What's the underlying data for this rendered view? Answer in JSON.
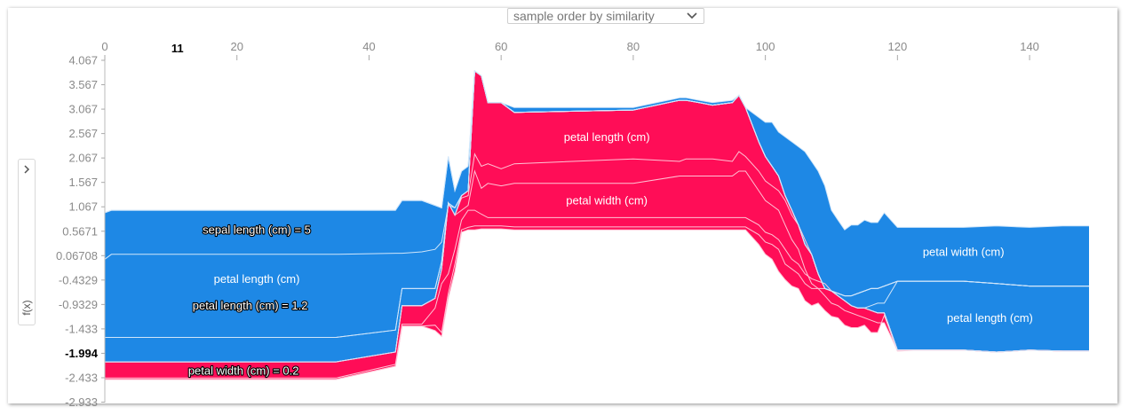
{
  "controls": {
    "order_select_label": "sample order by similarity",
    "side_toggle_icon": "chevron-right-icon",
    "y_axis_label": "f(x)"
  },
  "chart_data": {
    "type": "area",
    "title": "",
    "xlabel": "",
    "ylabel": "f(x)",
    "xlim": [
      0,
      149
    ],
    "ylim": [
      -2.933,
      4.067
    ],
    "x_ticks": [
      "0",
      "20",
      "40",
      "60",
      "80",
      "100",
      "120",
      "140"
    ],
    "x_highlight": {
      "x": 11,
      "label": "11"
    },
    "y_ticks": [
      "4.067",
      "3.567",
      "3.067",
      "2.567",
      "2.067",
      "1.567",
      "1.067",
      "0.5671",
      "0.06708",
      "-0.4329",
      "-0.9329",
      "-1.433",
      "-1.994",
      "-2.433",
      "-2.933"
    ],
    "y_highlight": "-1.994",
    "base_value_label": "-1.994",
    "colors": {
      "positive": "#ff0d57",
      "negative": "#1e88e5",
      "divider_pos": "#ffc3d5",
      "divider_neg": "#d1e6fa"
    },
    "x": [
      0,
      1,
      10,
      35,
      44,
      45,
      48,
      50,
      51,
      52,
      53,
      54,
      55,
      56,
      57,
      58,
      60,
      62,
      80,
      87,
      88,
      90,
      92,
      95,
      96,
      97,
      99,
      100,
      101,
      102,
      103,
      104,
      105,
      106,
      107,
      108,
      109,
      110,
      111,
      112,
      113,
      114,
      115,
      116,
      117,
      118,
      120,
      123,
      130,
      135,
      140,
      145,
      149
    ],
    "series": [
      {
        "name": "",
        "kind": "positive",
        "values": [
          -2.46,
          -2.46,
          -2.46,
          -2.46,
          -2.19,
          -1.37,
          -1.37,
          -1.46,
          -1.58,
          -0.8,
          -0.25,
          0.55,
          0.6,
          0.6,
          0.62,
          0.62,
          0.62,
          0.6,
          0.6,
          0.6,
          0.6,
          0.6,
          0.6,
          0.6,
          0.6,
          0.6,
          0.3,
          0.1,
          0.0,
          -0.25,
          -0.42,
          -0.55,
          -0.6,
          -0.85,
          -0.95,
          -0.9,
          -1.05,
          -1.17,
          -1.2,
          -1.35,
          -1.4,
          -1.4,
          -1.35,
          -1.5,
          -1.5,
          -1.15,
          -1.88,
          -1.86,
          -1.86,
          -1.9,
          -1.86,
          -1.88,
          -1.88
        ]
      },
      {
        "name": "",
        "kind": "positive",
        "values": [
          -2.46,
          -2.46,
          -2.46,
          -2.46,
          -2.19,
          -1.37,
          -1.37,
          -1.35,
          -1.5,
          -0.7,
          -0.1,
          0.6,
          0.65,
          0.68,
          0.68,
          0.68,
          0.68,
          0.66,
          0.66,
          0.66,
          0.66,
          0.66,
          0.66,
          0.66,
          0.66,
          0.66,
          0.5,
          0.35,
          0.3,
          0.2,
          -0.1,
          -0.2,
          -0.3,
          -0.5,
          -0.6,
          -0.6,
          -0.75,
          -0.9,
          -0.95,
          -1.05,
          -1.1,
          -1.15,
          -1.2,
          -1.25,
          -1.3,
          -1.3,
          -1.86,
          -1.86,
          -1.86,
          -1.9,
          -1.86,
          -1.88,
          -1.88
        ]
      },
      {
        "name": "",
        "kind": "positive",
        "values": [
          -2.43,
          -2.43,
          -2.43,
          -2.43,
          -2.15,
          -1.33,
          -1.33,
          -1.0,
          -0.5,
          -0.3,
          0.2,
          0.8,
          1.0,
          1.0,
          0.92,
          0.85,
          0.85,
          0.85,
          0.85,
          0.85,
          0.85,
          0.85,
          0.85,
          0.85,
          0.85,
          0.85,
          0.7,
          0.55,
          0.5,
          0.4,
          0.2,
          0.0,
          -0.1,
          -0.3,
          -0.4,
          -0.45,
          -0.5,
          -0.65,
          -0.75,
          -0.85,
          -0.95,
          -1.0,
          -1.0,
          -1.05,
          -1.1,
          -1.1,
          -1.86,
          -1.86,
          -1.86,
          -1.9,
          -1.86,
          -1.88,
          -1.88
        ]
      },
      {
        "name": "",
        "kind": "positive",
        "values": [
          -2.1,
          -2.1,
          -2.1,
          -2.1,
          -1.9,
          -0.95,
          -0.95,
          -0.8,
          -0.2,
          1.15,
          0.9,
          1.0,
          1.1,
          1.8,
          1.45,
          1.55,
          1.5,
          1.55,
          1.55,
          1.7,
          1.7,
          1.7,
          1.7,
          1.7,
          1.8,
          1.8,
          1.4,
          1.2,
          1.1,
          1.0,
          0.7,
          0.4,
          0.2,
          -0.2,
          -0.5,
          -0.6,
          -0.6,
          -0.65,
          -0.75,
          -0.85,
          -0.95,
          -1.0,
          -1.0,
          -1.05,
          -1.1,
          -1.1,
          -1.86,
          -1.86,
          -1.86,
          -1.9,
          -1.86,
          -1.88,
          -1.88
        ]
      },
      {
        "name": "",
        "kind": "positive",
        "values": [
          -2.1,
          -2.1,
          -2.1,
          -2.1,
          -1.9,
          -0.95,
          -0.95,
          -0.8,
          -0.2,
          1.15,
          0.9,
          1.25,
          1.3,
          2.15,
          1.9,
          1.95,
          1.85,
          1.95,
          2.05,
          2.0,
          2.05,
          2.05,
          2.05,
          2.0,
          2.2,
          2.1,
          1.8,
          1.6,
          1.5,
          1.4,
          1.2,
          0.9,
          0.7,
          0.4,
          0.1,
          -0.3,
          -0.6,
          -0.65,
          -0.75,
          -0.85,
          -0.95,
          -1.0,
          -1.0,
          -1.05,
          -1.1,
          -1.1,
          -1.86,
          -1.86,
          -1.86,
          -1.9,
          -1.86,
          -1.88,
          -1.88
        ]
      },
      {
        "name": "",
        "kind": "positive",
        "values": [
          -2.1,
          -2.1,
          -2.1,
          -2.1,
          -1.9,
          -0.95,
          -0.95,
          -0.8,
          -0.2,
          1.15,
          0.9,
          1.3,
          1.4,
          3.85,
          3.75,
          3.2,
          3.2,
          3.0,
          3.05,
          3.25,
          3.25,
          3.2,
          3.15,
          3.2,
          3.35,
          3.1,
          2.4,
          2.1,
          1.9,
          1.7,
          1.3,
          1.0,
          0.7,
          0.3,
          0.1,
          -0.3,
          -0.6,
          -0.65,
          -0.75,
          -0.85,
          -0.95,
          -1.0,
          -1.0,
          -1.05,
          -1.1,
          -1.1,
          -1.86,
          -1.86,
          -1.86,
          -1.9,
          -1.86,
          -1.88,
          -1.88
        ]
      },
      {
        "name": "",
        "kind": "negative",
        "values": [
          -2.1,
          -2.1,
          -2.1,
          -2.1,
          -1.9,
          -0.95,
          -0.95,
          -0.8,
          -0.2,
          1.15,
          0.9,
          1.3,
          1.4,
          3.85,
          3.75,
          3.2,
          3.2,
          3.0,
          3.05,
          3.25,
          3.25,
          3.2,
          3.15,
          3.2,
          3.35,
          3.1,
          2.4,
          2.1,
          1.9,
          1.7,
          1.3,
          1.0,
          0.7,
          0.3,
          0.1,
          -0.3,
          -0.6,
          -0.65,
          -0.75,
          -0.85,
          -0.95,
          -1.0,
          -1.0,
          -1.05,
          -1.1,
          -1.1,
          -1.86,
          -1.86,
          -1.86,
          -1.9,
          -1.86,
          -1.88,
          -1.88
        ]
      },
      {
        "name": "",
        "kind": "negative",
        "values": [
          -1.6,
          -1.6,
          -1.6,
          -1.6,
          -1.45,
          -0.6,
          -0.6,
          -0.6,
          -0.05,
          1.15,
          1.05,
          1.3,
          1.4,
          3.85,
          3.75,
          3.2,
          3.2,
          3.0,
          3.05,
          3.25,
          3.25,
          3.2,
          3.15,
          3.2,
          3.35,
          3.1,
          2.4,
          2.1,
          1.9,
          1.7,
          1.3,
          1.0,
          0.7,
          0.3,
          0.1,
          -0.3,
          -0.6,
          -0.65,
          -0.75,
          -0.85,
          -0.95,
          -1.0,
          -1.0,
          -0.95,
          -0.9,
          -0.9,
          -0.45,
          -0.45,
          -0.45,
          -0.5,
          -0.55,
          -0.55,
          -0.55
        ]
      },
      {
        "name": "",
        "kind": "negative",
        "values": [
          -1.6,
          -1.6,
          -1.6,
          -1.6,
          -1.45,
          -0.6,
          -0.6,
          -0.6,
          -0.05,
          1.15,
          1.05,
          1.3,
          1.4,
          3.85,
          3.75,
          3.2,
          3.2,
          3.0,
          3.05,
          3.25,
          3.25,
          3.2,
          3.15,
          3.2,
          3.35,
          3.1,
          2.4,
          2.1,
          1.9,
          1.7,
          1.3,
          1.0,
          0.7,
          0.3,
          0.1,
          -0.3,
          -0.6,
          -0.65,
          -0.7,
          -0.75,
          -0.75,
          -0.7,
          -0.65,
          -0.6,
          -0.6,
          -0.55,
          -0.45,
          -0.45,
          -0.45,
          -0.5,
          -0.55,
          -0.55,
          -0.55
        ]
      },
      {
        "name": "",
        "kind": "negative",
        "values": [
          0.0,
          0.1,
          0.1,
          0.1,
          0.12,
          0.12,
          0.15,
          0.2,
          0.35,
          1.1,
          1.05,
          1.3,
          1.4,
          3.85,
          3.75,
          3.2,
          3.2,
          3.0,
          3.05,
          3.25,
          3.25,
          3.2,
          3.15,
          3.2,
          3.35,
          3.1,
          2.4,
          2.1,
          1.9,
          1.7,
          1.3,
          1.0,
          0.7,
          0.3,
          0.1,
          -0.3,
          -0.6,
          -0.65,
          -0.7,
          -0.75,
          -0.75,
          -0.7,
          -0.65,
          -0.6,
          -0.6,
          -0.55,
          -0.45,
          -0.45,
          -0.45,
          -0.5,
          -0.55,
          -0.55,
          -0.55
        ]
      },
      {
        "name": "",
        "kind": "negative",
        "values": [
          0.95,
          1.0,
          1.0,
          1.0,
          1.0,
          1.2,
          1.2,
          1.1,
          1.05,
          2.1,
          1.4,
          1.8,
          1.9,
          3.85,
          3.75,
          3.2,
          3.2,
          3.0,
          3.05,
          3.25,
          3.25,
          3.2,
          3.15,
          3.2,
          3.35,
          3.1,
          2.4,
          2.1,
          1.9,
          1.7,
          1.3,
          1.0,
          0.7,
          0.3,
          0.1,
          -0.3,
          -0.6,
          -0.65,
          -0.7,
          -0.75,
          -0.75,
          -0.7,
          -0.65,
          -0.6,
          -0.6,
          -0.55,
          -0.45,
          -0.45,
          -0.45,
          -0.5,
          -0.55,
          -0.55,
          -0.55
        ]
      },
      {
        "name": "",
        "kind": "negative",
        "values": [
          0.95,
          1.0,
          1.0,
          1.0,
          1.0,
          1.2,
          1.2,
          1.1,
          1.05,
          2.1,
          1.4,
          1.8,
          1.9,
          3.85,
          3.75,
          3.2,
          3.2,
          3.1,
          3.1,
          3.3,
          3.3,
          3.25,
          3.2,
          3.25,
          3.35,
          3.1,
          2.9,
          2.8,
          2.8,
          2.6,
          2.5,
          2.4,
          2.3,
          2.2,
          2.0,
          1.8,
          1.5,
          1.0,
          0.8,
          0.6,
          0.7,
          0.7,
          0.8,
          0.75,
          0.75,
          0.95,
          0.65,
          0.65,
          0.65,
          0.68,
          0.65,
          0.68,
          0.68
        ]
      }
    ],
    "annotations": [
      {
        "text": "sepal length (cm) = 5",
        "x": 23,
        "y": 0.6,
        "anchor": "middle",
        "style": "outline"
      },
      {
        "text": "petal length (cm)",
        "x": 23,
        "y": -0.4,
        "anchor": "middle",
        "style": "plain"
      },
      {
        "text": "petal length (cm) = 1.2",
        "x": 22,
        "y": -0.95,
        "anchor": "middle",
        "style": "outline"
      },
      {
        "text": "petal width (cm) = 0.2",
        "x": 21,
        "y": -2.28,
        "anchor": "middle",
        "style": "outline"
      },
      {
        "text": "petal length (cm)",
        "x": 76,
        "y": 2.5,
        "anchor": "middle",
        "style": "plain"
      },
      {
        "text": "petal width (cm)",
        "x": 76,
        "y": 1.2,
        "anchor": "middle",
        "style": "plain"
      },
      {
        "text": "petal width (cm)",
        "x": 130,
        "y": 0.15,
        "anchor": "middle",
        "style": "plain"
      },
      {
        "text": "petal length (cm)",
        "x": 134,
        "y": -1.2,
        "anchor": "middle",
        "style": "plain"
      }
    ]
  }
}
